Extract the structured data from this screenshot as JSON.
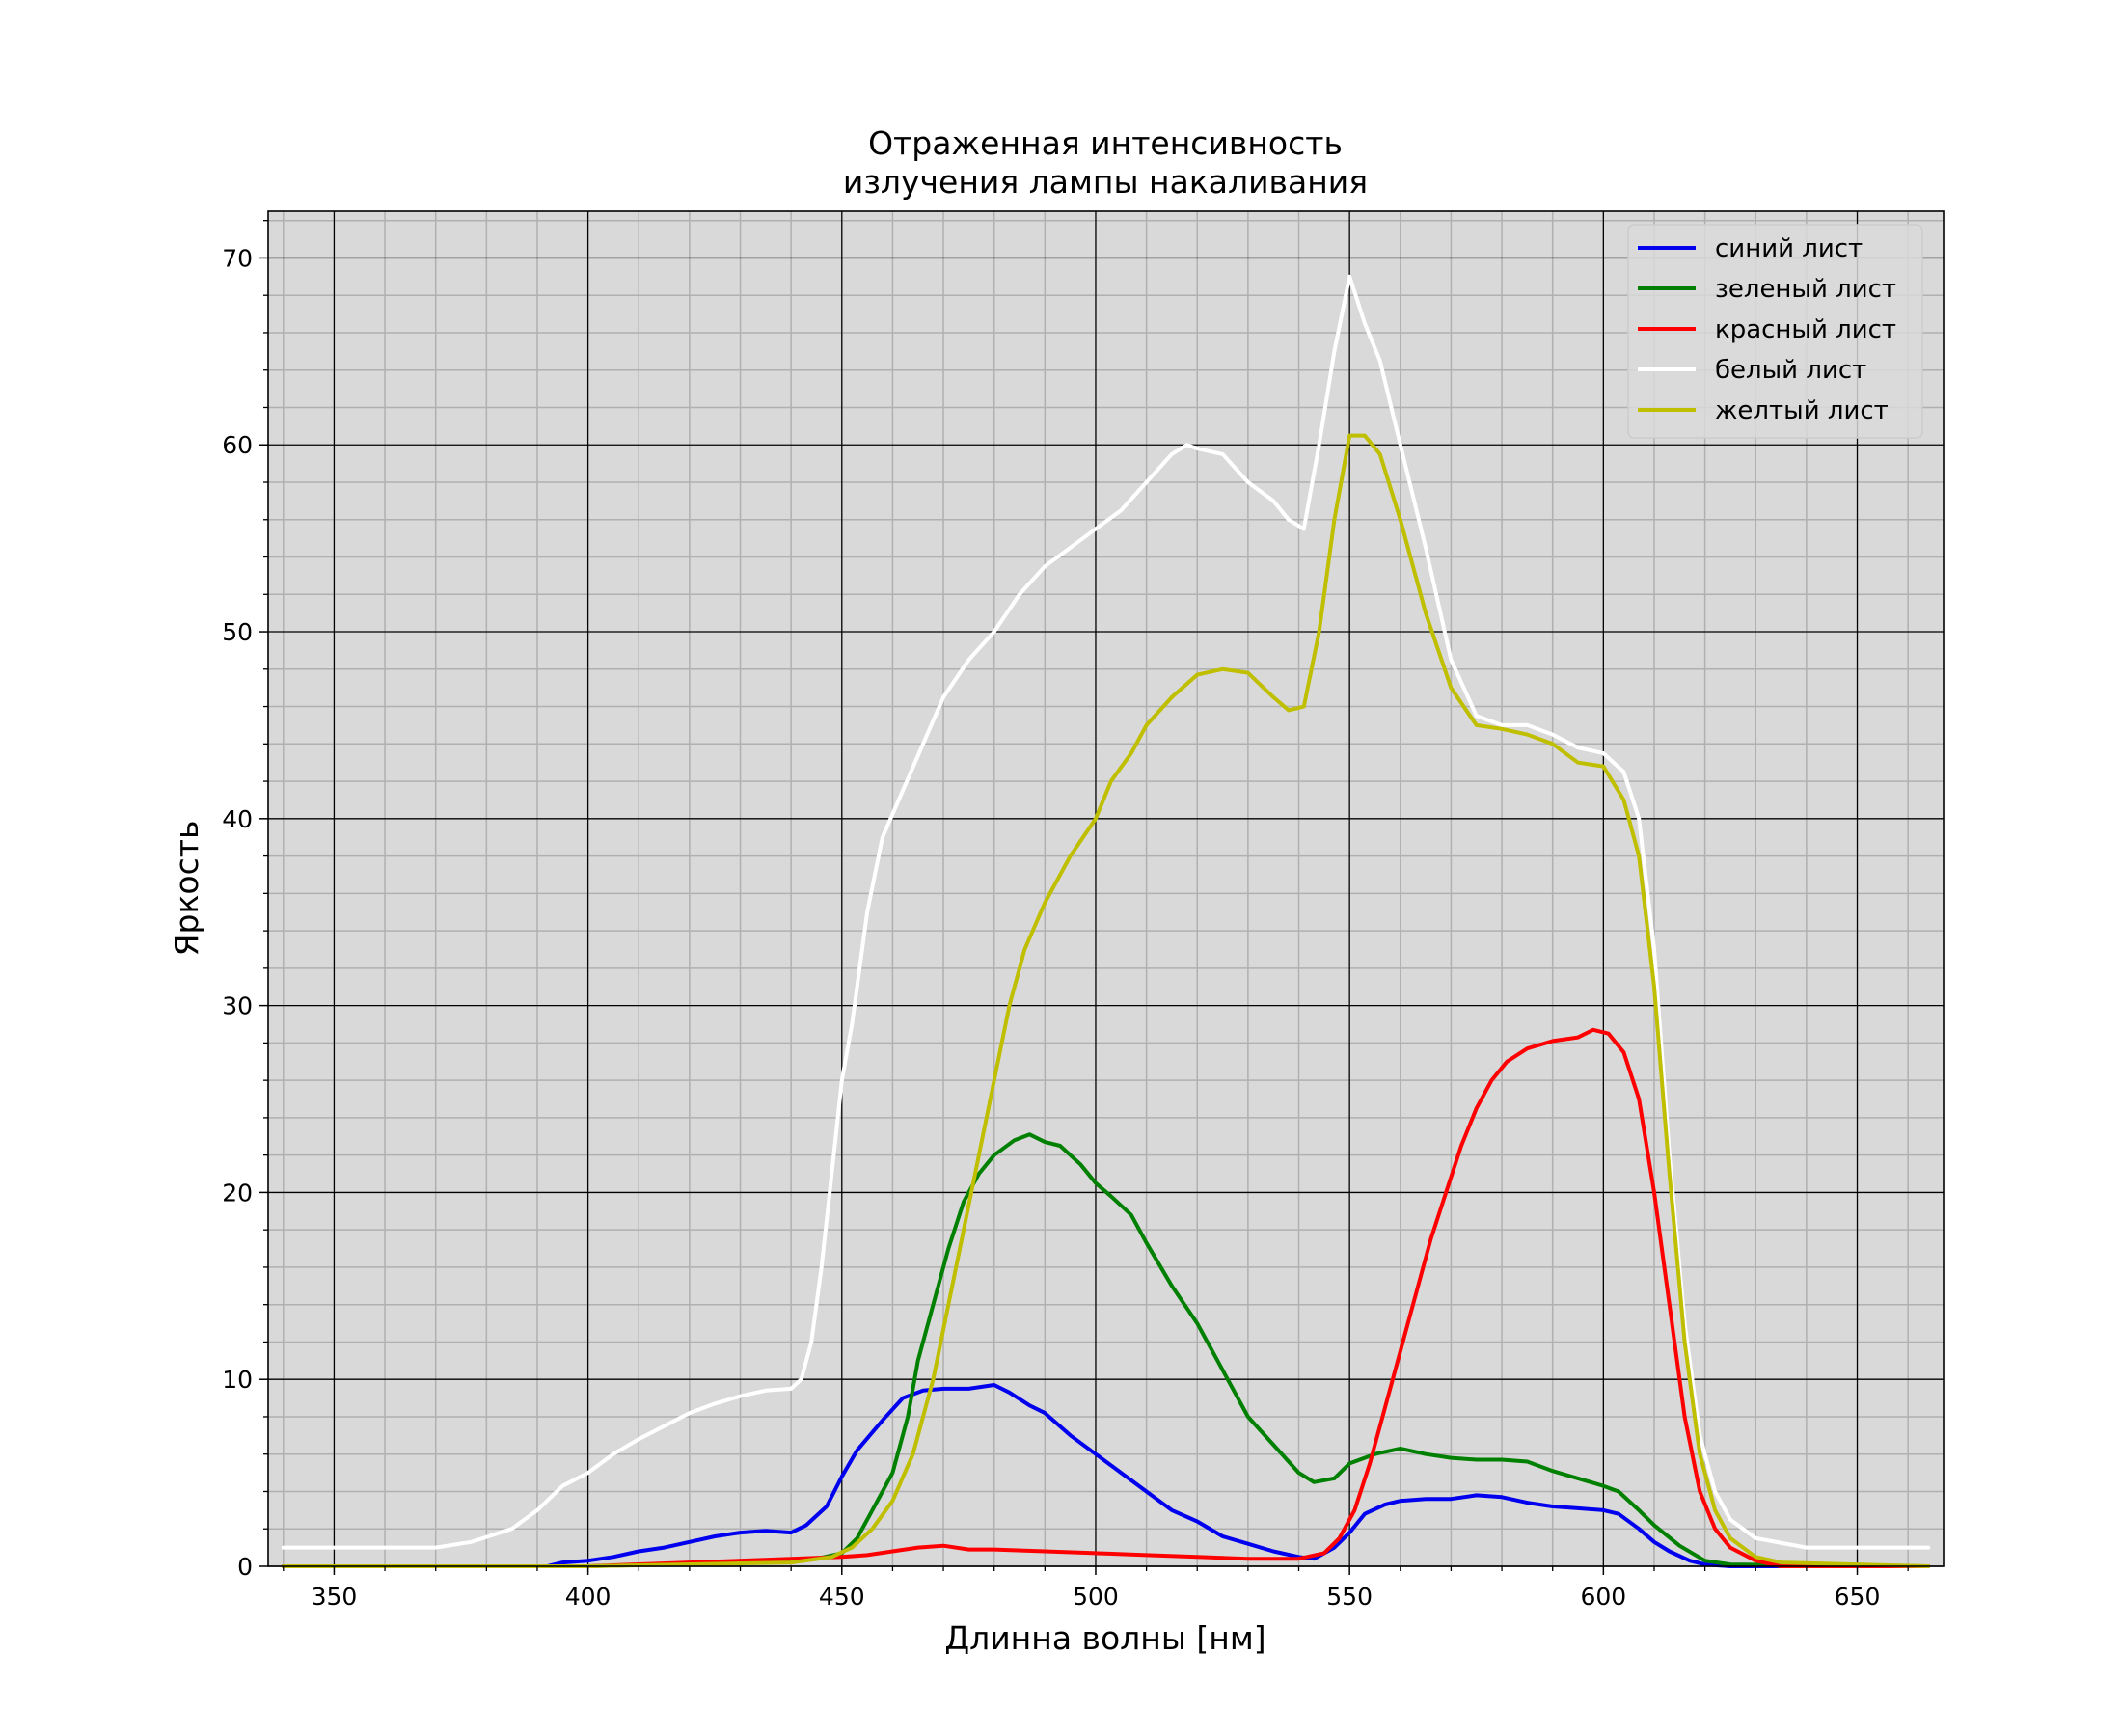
{
  "chart_data": {
    "type": "line",
    "title": [
      "Отраженная интенсивность",
      "излучения лампы накаливания"
    ],
    "xlabel": "Длинна волны [нм]",
    "ylabel": "Яркость",
    "xlim": [
      337,
      667
    ],
    "ylim": [
      0,
      72.5
    ],
    "xticks": [
      350,
      400,
      450,
      500,
      550,
      600,
      650
    ],
    "yticks": [
      0,
      10,
      20,
      30,
      40,
      50,
      60,
      70
    ],
    "xtick_labels": [
      "350",
      "400",
      "450",
      "500",
      "550",
      "600",
      "650"
    ],
    "ytick_labels": [
      "0",
      "10",
      "20",
      "30",
      "40",
      "50",
      "60",
      "70"
    ],
    "x_minor_step": 10,
    "y_minor_step": 2,
    "grid": true,
    "background": "#d9d9d9",
    "legend_position": "top-right",
    "series": [
      {
        "name": "синий лист",
        "color": "#0000ee",
        "points": [
          [
            340,
            0
          ],
          [
            392,
            0
          ],
          [
            395,
            0.2
          ],
          [
            400,
            0.3
          ],
          [
            405,
            0.5
          ],
          [
            410,
            0.8
          ],
          [
            415,
            1.0
          ],
          [
            420,
            1.3
          ],
          [
            425,
            1.6
          ],
          [
            430,
            1.8
          ],
          [
            435,
            1.9
          ],
          [
            440,
            1.8
          ],
          [
            443,
            2.2
          ],
          [
            447,
            3.2
          ],
          [
            450,
            4.8
          ],
          [
            453,
            6.2
          ],
          [
            458,
            7.8
          ],
          [
            462,
            9.0
          ],
          [
            466,
            9.4
          ],
          [
            470,
            9.5
          ],
          [
            475,
            9.5
          ],
          [
            480,
            9.7
          ],
          [
            483,
            9.3
          ],
          [
            487,
            8.6
          ],
          [
            490,
            8.2
          ],
          [
            495,
            7.0
          ],
          [
            500,
            6.0
          ],
          [
            505,
            5.0
          ],
          [
            510,
            4.0
          ],
          [
            515,
            3.0
          ],
          [
            520,
            2.4
          ],
          [
            525,
            1.6
          ],
          [
            530,
            1.2
          ],
          [
            535,
            0.8
          ],
          [
            540,
            0.5
          ],
          [
            543,
            0.4
          ],
          [
            547,
            1.0
          ],
          [
            550,
            1.8
          ],
          [
            553,
            2.8
          ],
          [
            557,
            3.3
          ],
          [
            560,
            3.5
          ],
          [
            565,
            3.6
          ],
          [
            570,
            3.6
          ],
          [
            575,
            3.8
          ],
          [
            580,
            3.7
          ],
          [
            585,
            3.4
          ],
          [
            590,
            3.2
          ],
          [
            595,
            3.1
          ],
          [
            600,
            3.0
          ],
          [
            603,
            2.8
          ],
          [
            607,
            2.0
          ],
          [
            610,
            1.3
          ],
          [
            613,
            0.8
          ],
          [
            617,
            0.3
          ],
          [
            620,
            0.1
          ],
          [
            625,
            0
          ],
          [
            664,
            0
          ]
        ]
      },
      {
        "name": "зеленый лист",
        "color": "#008000",
        "points": [
          [
            340,
            0
          ],
          [
            400,
            0
          ],
          [
            430,
            0.2
          ],
          [
            440,
            0.3
          ],
          [
            445,
            0.4
          ],
          [
            450,
            0.7
          ],
          [
            453,
            1.5
          ],
          [
            456,
            3.0
          ],
          [
            460,
            5.0
          ],
          [
            463,
            8.0
          ],
          [
            465,
            11.0
          ],
          [
            468,
            14.0
          ],
          [
            471,
            17.0
          ],
          [
            474,
            19.5
          ],
          [
            477,
            21.0
          ],
          [
            480,
            22.0
          ],
          [
            484,
            22.8
          ],
          [
            487,
            23.1
          ],
          [
            490,
            22.7
          ],
          [
            493,
            22.5
          ],
          [
            497,
            21.5
          ],
          [
            500,
            20.5
          ],
          [
            503,
            19.8
          ],
          [
            507,
            18.8
          ],
          [
            510,
            17.3
          ],
          [
            515,
            15.0
          ],
          [
            520,
            13.0
          ],
          [
            523,
            11.5
          ],
          [
            527,
            9.5
          ],
          [
            530,
            8.0
          ],
          [
            535,
            6.5
          ],
          [
            540,
            5.0
          ],
          [
            543,
            4.5
          ],
          [
            547,
            4.7
          ],
          [
            550,
            5.5
          ],
          [
            555,
            6.0
          ],
          [
            560,
            6.3
          ],
          [
            565,
            6.0
          ],
          [
            570,
            5.8
          ],
          [
            575,
            5.7
          ],
          [
            580,
            5.7
          ],
          [
            585,
            5.6
          ],
          [
            590,
            5.1
          ],
          [
            595,
            4.7
          ],
          [
            600,
            4.3
          ],
          [
            603,
            4.0
          ],
          [
            607,
            3.0
          ],
          [
            610,
            2.2
          ],
          [
            615,
            1.1
          ],
          [
            620,
            0.3
          ],
          [
            625,
            0.1
          ],
          [
            664,
            0
          ]
        ]
      },
      {
        "name": "красный лист",
        "color": "#ff0000",
        "points": [
          [
            340,
            0
          ],
          [
            400,
            0
          ],
          [
            420,
            0.2
          ],
          [
            440,
            0.4
          ],
          [
            450,
            0.5
          ],
          [
            455,
            0.6
          ],
          [
            460,
            0.8
          ],
          [
            465,
            1.0
          ],
          [
            470,
            1.1
          ],
          [
            475,
            0.9
          ],
          [
            480,
            0.9
          ],
          [
            490,
            0.8
          ],
          [
            500,
            0.7
          ],
          [
            510,
            0.6
          ],
          [
            520,
            0.5
          ],
          [
            530,
            0.4
          ],
          [
            540,
            0.4
          ],
          [
            545,
            0.7
          ],
          [
            548,
            1.5
          ],
          [
            551,
            3.0
          ],
          [
            554,
            5.5
          ],
          [
            557,
            8.5
          ],
          [
            560,
            11.5
          ],
          [
            563,
            14.5
          ],
          [
            566,
            17.5
          ],
          [
            569,
            20.0
          ],
          [
            572,
            22.5
          ],
          [
            575,
            24.5
          ],
          [
            578,
            26.0
          ],
          [
            581,
            27.0
          ],
          [
            585,
            27.7
          ],
          [
            590,
            28.1
          ],
          [
            595,
            28.3
          ],
          [
            598,
            28.7
          ],
          [
            601,
            28.5
          ],
          [
            604,
            27.5
          ],
          [
            607,
            25.0
          ],
          [
            610,
            20.0
          ],
          [
            613,
            14.0
          ],
          [
            616,
            8.0
          ],
          [
            619,
            4.0
          ],
          [
            622,
            2.0
          ],
          [
            625,
            1.0
          ],
          [
            630,
            0.3
          ],
          [
            635,
            0
          ],
          [
            664,
            0
          ]
        ]
      },
      {
        "name": "белый лист",
        "color": "#ffffff",
        "points": [
          [
            340,
            1.0
          ],
          [
            370,
            1.0
          ],
          [
            377,
            1.3
          ],
          [
            385,
            2.0
          ],
          [
            390,
            3.0
          ],
          [
            395,
            4.3
          ],
          [
            400,
            5.0
          ],
          [
            405,
            6.0
          ],
          [
            410,
            6.8
          ],
          [
            415,
            7.5
          ],
          [
            420,
            8.2
          ],
          [
            425,
            8.7
          ],
          [
            430,
            9.1
          ],
          [
            435,
            9.4
          ],
          [
            440,
            9.5
          ],
          [
            442,
            10.0
          ],
          [
            444,
            12.0
          ],
          [
            446,
            16.0
          ],
          [
            448,
            21.0
          ],
          [
            450,
            26.0
          ],
          [
            452,
            29.0
          ],
          [
            455,
            35.0
          ],
          [
            458,
            39.0
          ],
          [
            462,
            41.5
          ],
          [
            466,
            44.0
          ],
          [
            470,
            46.5
          ],
          [
            475,
            48.5
          ],
          [
            480,
            50.0
          ],
          [
            485,
            52.0
          ],
          [
            490,
            53.5
          ],
          [
            495,
            54.5
          ],
          [
            500,
            55.5
          ],
          [
            505,
            56.5
          ],
          [
            510,
            58.0
          ],
          [
            515,
            59.5
          ],
          [
            518,
            60.0
          ],
          [
            520,
            59.8
          ],
          [
            525,
            59.5
          ],
          [
            530,
            58.0
          ],
          [
            535,
            57.0
          ],
          [
            538,
            56.0
          ],
          [
            541,
            55.5
          ],
          [
            544,
            60.0
          ],
          [
            547,
            65.0
          ],
          [
            550,
            69.0
          ],
          [
            553,
            66.5
          ],
          [
            556,
            64.5
          ],
          [
            560,
            60.0
          ],
          [
            565,
            54.5
          ],
          [
            570,
            48.5
          ],
          [
            575,
            45.5
          ],
          [
            580,
            45.0
          ],
          [
            585,
            45.0
          ],
          [
            590,
            44.5
          ],
          [
            595,
            43.8
          ],
          [
            600,
            43.5
          ],
          [
            604,
            42.5
          ],
          [
            607,
            40.0
          ],
          [
            610,
            33.0
          ],
          [
            613,
            22.0
          ],
          [
            616,
            13.0
          ],
          [
            619,
            7.0
          ],
          [
            622,
            4.0
          ],
          [
            625,
            2.5
          ],
          [
            630,
            1.5
          ],
          [
            640,
            1.0
          ],
          [
            664,
            1.0
          ]
        ]
      },
      {
        "name": "желтый лист",
        "color": "#bfbf00",
        "points": [
          [
            340,
            0
          ],
          [
            400,
            0
          ],
          [
            440,
            0.2
          ],
          [
            448,
            0.5
          ],
          [
            452,
            1.0
          ],
          [
            456,
            2.0
          ],
          [
            460,
            3.5
          ],
          [
            464,
            6.0
          ],
          [
            468,
            10.0
          ],
          [
            471,
            14.0
          ],
          [
            474,
            18.0
          ],
          [
            477,
            22.0
          ],
          [
            480,
            26.0
          ],
          [
            483,
            30.0
          ],
          [
            486,
            33.0
          ],
          [
            490,
            35.5
          ],
          [
            495,
            38.0
          ],
          [
            500,
            40.0
          ],
          [
            503,
            42.0
          ],
          [
            507,
            43.5
          ],
          [
            510,
            45.0
          ],
          [
            515,
            46.5
          ],
          [
            520,
            47.7
          ],
          [
            525,
            48.0
          ],
          [
            530,
            47.8
          ],
          [
            535,
            46.5
          ],
          [
            538,
            45.8
          ],
          [
            541,
            46.0
          ],
          [
            544,
            50.0
          ],
          [
            547,
            56.0
          ],
          [
            550,
            60.5
          ],
          [
            553,
            60.5
          ],
          [
            556,
            59.5
          ],
          [
            560,
            56.0
          ],
          [
            565,
            51.0
          ],
          [
            570,
            47.0
          ],
          [
            575,
            45.0
          ],
          [
            580,
            44.8
          ],
          [
            585,
            44.5
          ],
          [
            590,
            44.0
          ],
          [
            595,
            43.0
          ],
          [
            600,
            42.8
          ],
          [
            604,
            41.0
          ],
          [
            607,
            38.0
          ],
          [
            610,
            31.0
          ],
          [
            613,
            21.0
          ],
          [
            616,
            12.0
          ],
          [
            619,
            6.0
          ],
          [
            622,
            3.0
          ],
          [
            625,
            1.5
          ],
          [
            630,
            0.5
          ],
          [
            635,
            0.2
          ],
          [
            664,
            0
          ]
        ]
      }
    ]
  }
}
